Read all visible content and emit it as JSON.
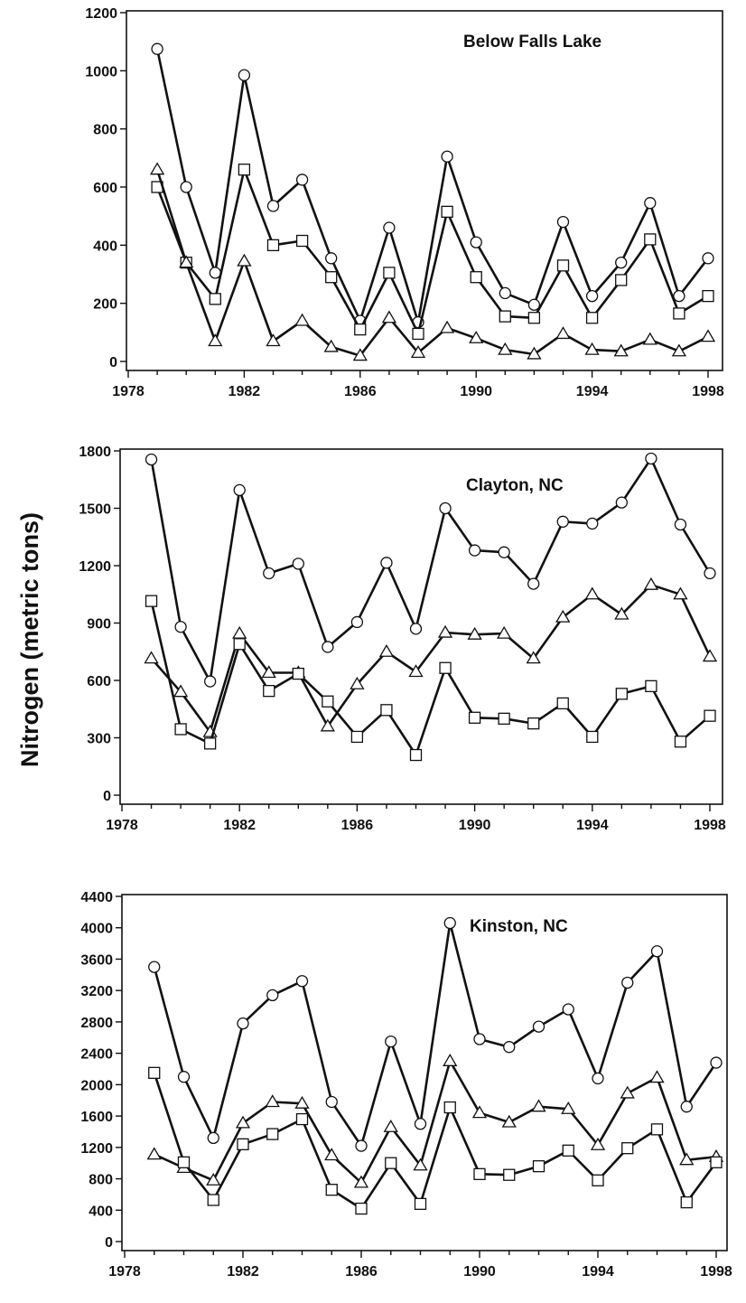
{
  "y_axis_label": "Nitrogen (metric tons)",
  "colors": {
    "ink": "#111111",
    "background": "#ffffff"
  },
  "chart_data": [
    {
      "type": "line",
      "title": "Below Falls Lake",
      "xlabel": "",
      "ylabel": "Nitrogen (metric tons)",
      "xlim": [
        1978,
        1998
      ],
      "ylim": [
        0,
        1200
      ],
      "xticks": [
        1978,
        1982,
        1986,
        1990,
        1994,
        1998
      ],
      "yticks": [
        0,
        200,
        400,
        600,
        800,
        1000,
        1200
      ],
      "x": [
        1979,
        1980,
        1981,
        1982,
        1983,
        1984,
        1985,
        1986,
        1987,
        1988,
        1989,
        1990,
        1991,
        1992,
        1993,
        1994,
        1995,
        1996,
        1997,
        1998
      ],
      "series": [
        {
          "name": "circle",
          "marker": "circle",
          "values": [
            1075,
            600,
            305,
            985,
            535,
            625,
            355,
            140,
            460,
            135,
            705,
            410,
            235,
            195,
            480,
            225,
            340,
            545,
            225,
            355
          ]
        },
        {
          "name": "square",
          "marker": "square",
          "values": [
            600,
            340,
            215,
            660,
            400,
            415,
            290,
            110,
            305,
            95,
            515,
            290,
            155,
            150,
            330,
            150,
            280,
            420,
            165,
            225
          ]
        },
        {
          "name": "triangle",
          "marker": "triangle",
          "values": [
            660,
            340,
            70,
            345,
            70,
            140,
            50,
            20,
            150,
            30,
            115,
            80,
            40,
            25,
            95,
            40,
            35,
            75,
            35,
            85
          ]
        }
      ]
    },
    {
      "type": "line",
      "title": "Clayton, NC",
      "xlabel": "",
      "ylabel": "Nitrogen (metric tons)",
      "xlim": [
        1978,
        1998
      ],
      "ylim": [
        0,
        1800
      ],
      "xticks": [
        1978,
        1982,
        1986,
        1990,
        1994,
        1998
      ],
      "yticks": [
        0,
        300,
        600,
        900,
        1200,
        1500,
        1800
      ],
      "x": [
        1979,
        1980,
        1981,
        1982,
        1983,
        1984,
        1985,
        1986,
        1987,
        1988,
        1989,
        1990,
        1991,
        1992,
        1993,
        1994,
        1995,
        1996,
        1997,
        1998
      ],
      "series": [
        {
          "name": "circle",
          "marker": "circle",
          "values": [
            1755,
            880,
            595,
            1595,
            1160,
            1210,
            775,
            905,
            1215,
            870,
            1500,
            1280,
            1270,
            1105,
            1430,
            1420,
            1530,
            1760,
            1415,
            1160
          ]
        },
        {
          "name": "triangle",
          "marker": "triangle",
          "values": [
            715,
            540,
            330,
            845,
            640,
            640,
            360,
            580,
            750,
            645,
            850,
            840,
            845,
            715,
            930,
            1050,
            945,
            1100,
            1050,
            725
          ]
        },
        {
          "name": "square",
          "marker": "square",
          "values": [
            1015,
            345,
            270,
            790,
            545,
            635,
            490,
            305,
            445,
            210,
            665,
            405,
            400,
            375,
            480,
            305,
            530,
            570,
            280,
            415
          ]
        }
      ]
    },
    {
      "type": "line",
      "title": "Kinston, NC",
      "xlabel": "",
      "ylabel": "Nitrogen (metric tons)",
      "xlim": [
        1978,
        1998
      ],
      "ylim": [
        0,
        4400
      ],
      "xticks": [
        1978,
        1982,
        1986,
        1990,
        1994,
        1998
      ],
      "yticks": [
        0,
        400,
        800,
        1200,
        1600,
        2000,
        2400,
        2800,
        3200,
        3600,
        4000,
        4400
      ],
      "x": [
        1979,
        1980,
        1981,
        1982,
        1983,
        1984,
        1985,
        1986,
        1987,
        1988,
        1989,
        1990,
        1991,
        1992,
        1993,
        1994,
        1995,
        1996,
        1997,
        1998
      ],
      "series": [
        {
          "name": "circle",
          "marker": "circle",
          "values": [
            3500,
            2100,
            1320,
            2780,
            3140,
            3320,
            1780,
            1220,
            2550,
            1500,
            4060,
            2580,
            2480,
            2740,
            2960,
            2080,
            3300,
            3700,
            1720,
            2280
          ]
        },
        {
          "name": "triangle",
          "marker": "triangle",
          "values": [
            1110,
            940,
            780,
            1510,
            1780,
            1760,
            1100,
            750,
            1460,
            970,
            2300,
            1640,
            1520,
            1720,
            1690,
            1230,
            1890,
            2090,
            1040,
            1080
          ]
        },
        {
          "name": "square",
          "marker": "square",
          "values": [
            2150,
            1010,
            530,
            1240,
            1370,
            1560,
            660,
            420,
            1000,
            480,
            1710,
            860,
            850,
            960,
            1160,
            780,
            1190,
            1430,
            500,
            1010
          ]
        }
      ]
    }
  ]
}
